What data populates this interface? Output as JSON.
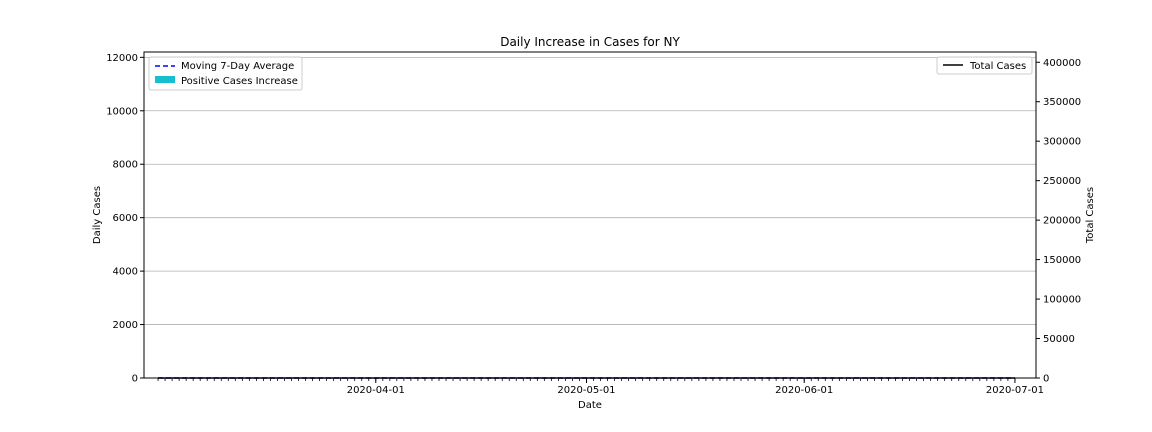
{
  "chart_data": {
    "type": "bar",
    "title": "Daily Increase in Cases for NY",
    "xlabel": "Date",
    "ylabel": "Daily Cases",
    "y2label": "Total Cases",
    "x_range": [
      "2020-02-28",
      "2020-07-04"
    ],
    "ylim": [
      0,
      12200
    ],
    "y2lim": [
      0,
      413000
    ],
    "yticks": [
      0,
      2000,
      4000,
      6000,
      8000,
      10000,
      12000
    ],
    "y2ticks": [
      0,
      50000,
      100000,
      150000,
      200000,
      250000,
      300000,
      350000,
      400000
    ],
    "xticks": [
      "2020-04-01",
      "2020-05-01",
      "2020-06-01",
      "2020-07-01"
    ],
    "grid": "y",
    "legend_left": {
      "placement": "top-left",
      "entries": [
        "Moving 7-Day Average",
        "Positive Cases Increase"
      ]
    },
    "legend_right": {
      "placement": "top-right",
      "entries": [
        "Total Cases"
      ]
    },
    "colors": {
      "bars": "#17becf",
      "moving_average": "#0000ff",
      "total": "#000000",
      "grid": "#b0b0b0"
    },
    "start_date": "2020-03-01",
    "series": [
      {
        "name": "Positive Cases Increase",
        "type": "bar",
        "values": [
          0,
          0,
          0,
          0,
          0,
          0,
          0,
          0,
          0,
          0,
          0,
          0,
          0,
          0,
          0,
          0,
          0,
          0,
          0,
          0,
          0,
          0,
          0,
          0,
          0,
          0,
          0,
          0,
          0,
          0,
          0,
          0,
          0,
          0,
          0,
          0,
          0,
          0,
          0,
          0,
          0,
          0,
          0,
          0,
          0,
          0,
          0,
          0,
          0,
          0,
          0,
          0,
          0,
          0,
          0,
          0,
          0,
          0,
          0,
          0,
          0,
          0,
          0,
          0,
          0,
          0,
          0,
          0,
          0,
          0,
          0,
          0,
          0,
          0,
          0,
          0,
          0,
          0,
          0,
          0,
          0,
          0,
          0,
          0,
          0,
          0,
          0,
          0,
          0,
          0,
          0,
          0,
          0,
          0,
          0,
          0,
          0,
          0,
          0,
          0,
          0,
          0,
          0,
          0,
          0,
          0,
          0,
          0,
          0,
          0,
          0,
          0,
          0,
          0,
          0,
          0,
          0,
          0,
          0,
          0,
          0,
          0,
          0
        ]
      },
      {
        "name": "Moving 7-Day Average",
        "type": "line",
        "style": "dashed",
        "values": [
          0,
          0,
          0,
          0,
          0,
          0,
          0,
          0,
          0,
          0,
          0,
          0,
          0,
          0,
          0,
          0,
          0,
          0,
          0,
          0,
          0,
          0,
          0,
          0,
          0,
          0,
          0,
          0,
          0,
          0,
          0,
          0,
          0,
          0,
          0,
          0,
          0,
          0,
          0,
          0,
          0,
          0,
          0,
          0,
          0,
          0,
          0,
          0,
          0,
          0,
          0,
          0,
          0,
          0,
          0,
          0,
          0,
          0,
          0,
          0,
          0,
          0,
          0,
          0,
          0,
          0,
          0,
          0,
          0,
          0,
          0,
          0,
          0,
          0,
          0,
          0,
          0,
          0,
          0,
          0,
          0,
          0,
          0,
          0,
          0,
          0,
          0,
          0,
          0,
          0,
          0,
          0,
          0,
          0,
          0,
          0,
          0,
          0,
          0,
          0,
          0,
          0,
          0,
          0,
          0,
          0,
          0,
          0,
          0,
          0,
          0,
          0,
          0,
          0,
          0,
          0,
          0,
          0,
          0,
          0,
          0,
          0,
          0
        ]
      },
      {
        "name": "Total Cases",
        "type": "line",
        "axis": "right",
        "values": [
          0,
          0,
          0,
          0,
          0,
          0,
          0,
          0,
          0,
          0,
          0,
          0,
          0,
          0,
          0,
          0,
          0,
          0,
          0,
          0,
          0,
          0,
          0,
          0,
          0,
          0,
          0,
          0,
          0,
          0,
          0,
          0,
          0,
          0,
          0,
          0,
          0,
          0,
          0,
          0,
          0,
          0,
          0,
          0,
          0,
          0,
          0,
          0,
          0,
          0,
          0,
          0,
          0,
          0,
          0,
          0,
          0,
          0,
          0,
          0,
          0,
          0,
          0,
          0,
          0,
          0,
          0,
          0,
          0,
          0,
          0,
          0,
          0,
          0,
          0,
          0,
          0,
          0,
          0,
          0,
          0,
          0,
          0,
          0,
          0,
          0,
          0,
          0,
          0,
          0,
          0,
          0,
          0,
          0,
          0,
          0,
          0,
          0,
          0,
          0,
          0,
          0,
          0,
          0,
          0,
          0,
          0,
          0,
          0,
          0,
          0,
          0,
          0,
          0,
          0,
          0,
          0,
          0,
          0,
          0,
          0,
          0,
          0
        ]
      }
    ]
  }
}
